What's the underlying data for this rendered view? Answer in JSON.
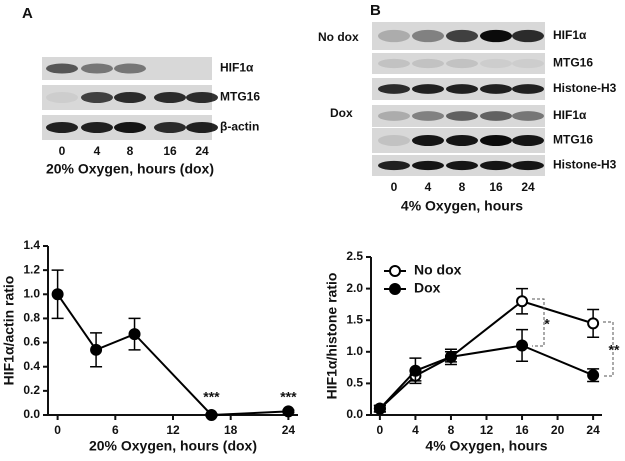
{
  "blots": {
    "A": {
      "label": "A",
      "rows": [
        "HIF1α",
        "MTG16",
        "β-actin"
      ],
      "lanes": [
        "0",
        "4",
        "8",
        "16",
        "24"
      ],
      "caption": "20% Oxygen, hours (dox)"
    },
    "B": {
      "label": "B",
      "groups": [
        "No dox",
        "Dox"
      ],
      "rows": [
        "HIF1α",
        "MTG16",
        "Histone-H3",
        "HIF1α",
        "MTG16",
        "Histone-H3"
      ],
      "lanes": [
        "0",
        "4",
        "8",
        "16",
        "24"
      ],
      "caption": "4% Oxygen, hours"
    }
  },
  "chart_data": [
    {
      "type": "line",
      "xlabel": "20% Oxygen, hours (dox)",
      "ylabel": "HIF1α/actin ratio",
      "x": [
        0,
        4,
        8,
        16,
        24
      ],
      "series": [
        {
          "color": "#000000",
          "marker": "filled",
          "values": [
            1.0,
            0.54,
            0.67,
            0.0,
            0.03
          ],
          "errors": [
            0.2,
            0.14,
            0.13,
            0.01,
            0.01
          ]
        }
      ],
      "xlim": [
        -1,
        25
      ],
      "xticks": [
        0,
        6,
        12,
        18,
        24
      ],
      "ylim": [
        0,
        1.4
      ],
      "yticks": [
        {
          "value": 0,
          "label": "0.0"
        },
        {
          "value": 0.2,
          "label": "0.2"
        },
        {
          "value": 0.4,
          "label": "0.4"
        },
        {
          "value": 0.6,
          "label": "0.6"
        },
        {
          "value": 0.8,
          "label": "0.8"
        },
        {
          "value": 1.0,
          "label": "1.0"
        },
        {
          "value": 1.2,
          "label": "1.2"
        },
        {
          "value": 1.4,
          "label": "1.4"
        }
      ],
      "annotations": [
        "***",
        "***"
      ]
    },
    {
      "type": "line",
      "xlabel": "4% Oxygen, hours",
      "ylabel": "HIF1α/histone ratio",
      "x": [
        0,
        4,
        8,
        16,
        24
      ],
      "series": [
        {
          "name": "No dox",
          "color": "#000000",
          "marker": "open",
          "values": [
            0.1,
            0.62,
            0.92,
            1.8,
            1.45
          ],
          "errors": [
            0.05,
            0.08,
            0.08,
            0.2,
            0.22
          ]
        },
        {
          "name": "Dox",
          "color": "#000000",
          "marker": "filled",
          "values": [
            0.1,
            0.7,
            0.92,
            1.1,
            0.63
          ],
          "errors": [
            0.05,
            0.2,
            0.12,
            0.25,
            0.1
          ]
        }
      ],
      "xlim": [
        -1,
        25
      ],
      "xticks": [
        0,
        4,
        8,
        12,
        16,
        20,
        24
      ],
      "ylim": [
        0,
        2.5
      ],
      "yticks": [
        {
          "value": 0,
          "label": "0.0"
        },
        {
          "value": 0.5,
          "label": "0.5"
        },
        {
          "value": 1.0,
          "label": "1.0"
        },
        {
          "value": 1.5,
          "label": "1.5"
        },
        {
          "value": 2.0,
          "label": "2.0"
        },
        {
          "value": 2.5,
          "label": "2.5"
        }
      ],
      "annotations": [
        "*",
        "**"
      ]
    }
  ]
}
